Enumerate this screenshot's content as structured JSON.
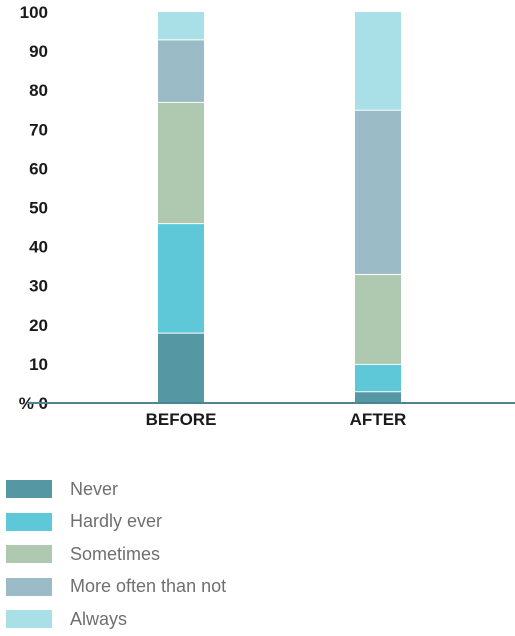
{
  "chart_data": {
    "type": "bar",
    "stacked": true,
    "categories": [
      "BEFORE",
      "AFTER"
    ],
    "series": [
      {
        "name": "Never",
        "color": "#5697a4",
        "values": [
          18,
          3
        ]
      },
      {
        "name": "Hardly ever",
        "color": "#5ec8d8",
        "values": [
          28,
          7
        ]
      },
      {
        "name": "Sometimes",
        "color": "#afc9b0",
        "values": [
          31,
          23
        ]
      },
      {
        "name": "More often than not",
        "color": "#9bbcc6",
        "values": [
          16,
          42
        ]
      },
      {
        "name": "Always",
        "color": "#a9dfe7",
        "values": [
          7,
          25
        ]
      }
    ],
    "yticks": [
      "% 0",
      "10",
      "20",
      "30",
      "40",
      "50",
      "60",
      "70",
      "80",
      "90",
      "100"
    ],
    "ylim": [
      0,
      100
    ],
    "grid": false,
    "legend_position": "bottom-left",
    "axis_color": "#4e8591"
  }
}
